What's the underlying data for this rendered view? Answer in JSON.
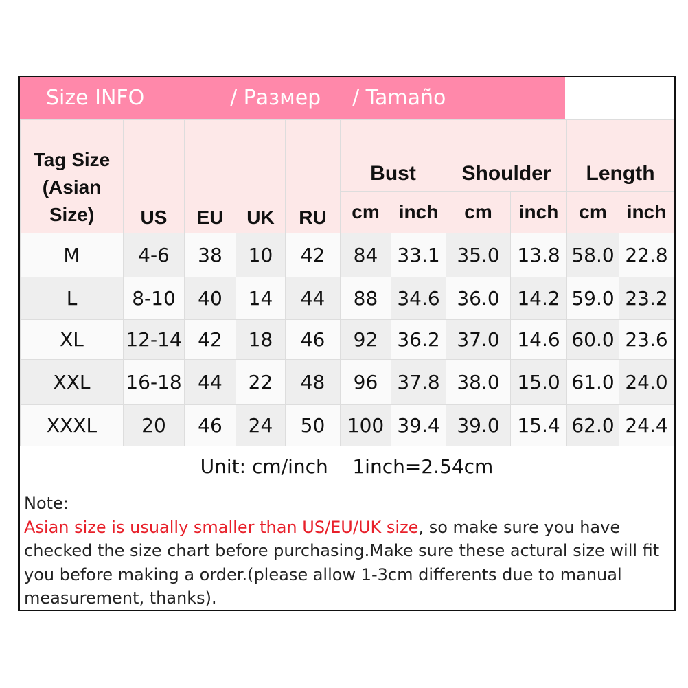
{
  "title": {
    "en": "Size INFO",
    "ru": "/  Размер",
    "es": "/  Tamaño"
  },
  "headers": {
    "tag": "Tag Size (Asian Size)",
    "us": "US",
    "eu": "EU",
    "uk": "UK",
    "ru": "RU",
    "bust": "Bust",
    "shoulder": "Shoulder",
    "length": "Length",
    "cm": "cm",
    "inch": "inch"
  },
  "rows": [
    [
      "M",
      "4-6",
      "38",
      "10",
      "42",
      "84",
      "33.1",
      "35.0",
      "13.8",
      "58.0",
      "22.8"
    ],
    [
      "L",
      "8-10",
      "40",
      "14",
      "44",
      "88",
      "34.6",
      "36.0",
      "14.2",
      "59.0",
      "23.2"
    ],
    [
      "XL",
      "12-14",
      "42",
      "18",
      "46",
      "92",
      "36.2",
      "37.0",
      "14.6",
      "60.0",
      "23.6"
    ],
    [
      "XXL",
      "16-18",
      "44",
      "22",
      "48",
      "96",
      "37.8",
      "38.0",
      "15.0",
      "61.0",
      "24.0"
    ],
    [
      "XXXL",
      "20",
      "46",
      "24",
      "50",
      "100",
      "39.4",
      "39.0",
      "15.4",
      "62.0",
      "24.4"
    ]
  ],
  "unit": "Unit: cm/inch    1inch=2.54cm",
  "note": {
    "label": "Note:",
    "warning": "Asian size is usually smaller than US/EU/UK size",
    "text": ", so make sure you have checked the size chart before purchasing.Make sure these actural size will fit you before making a order.(please allow 1-3cm differents due to manual measurement, thanks)."
  },
  "colors": {
    "title_bg": "#ff88aa",
    "header_bg": "#fde8e8",
    "warning": "#e8202a"
  }
}
